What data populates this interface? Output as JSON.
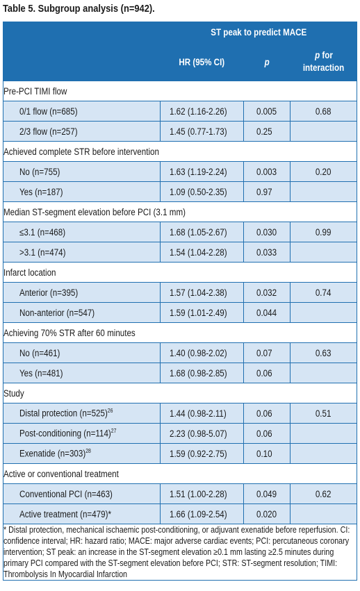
{
  "title": "Table 5. Subgroup analysis (n=942).",
  "header": {
    "group": "ST peak to predict MACE",
    "col1": "HR (95% CI)",
    "col2": "p",
    "col3_a": "p",
    "col3_b": " for",
    "col3_c": "interaction"
  },
  "sections": [
    {
      "title": "Pre-PCI TIMI flow",
      "rows": [
        {
          "label": "0/1 flow (n=685)",
          "hr": "1.62 (1.16-2.26)",
          "p": "0.005",
          "pint": "0.68"
        },
        {
          "label": "2/3 flow (n=257)",
          "hr": "1.45 (0.77-1.73)",
          "p": "0.25",
          "pint": ""
        }
      ]
    },
    {
      "title": "Achieved complete STR before intervention",
      "rows": [
        {
          "label": "No (n=755)",
          "hr": "1.63 (1.19-2.24)",
          "p": "0.003",
          "pint": "0.20"
        },
        {
          "label": "Yes (n=187)",
          "hr": "1.09 (0.50-2.35)",
          "p": "0.97",
          "pint": ""
        }
      ]
    },
    {
      "title": "Median ST-segment elevation before PCI (3.1 mm)",
      "rows": [
        {
          "label": "≤3.1 (n=468)",
          "hr": "1.68 (1.05-2.67)",
          "p": "0.030",
          "pint": "0.99"
        },
        {
          "label": ">3.1 (n=474)",
          "hr": "1.54 (1.04-2.28)",
          "p": "0.033",
          "pint": ""
        }
      ]
    },
    {
      "title": "Infarct location",
      "rows": [
        {
          "label": "Anterior (n=395)",
          "hr": "1.57 (1.04-2.38)",
          "p": "0.032",
          "pint": "0.74"
        },
        {
          "label": "Non-anterior (n=547)",
          "hr": "1.59 (1.01-2.49)",
          "p": "0.044",
          "pint": ""
        }
      ]
    },
    {
      "title": "Achieving 70% STR after 60 minutes",
      "rows": [
        {
          "label": "No (n=461)",
          "hr": "1.40 (0.98-2.02)",
          "p": "0.07",
          "pint": "0.63"
        },
        {
          "label": "Yes (n=481)",
          "hr": "1.68 (0.98-2.85)",
          "p": "0.06",
          "pint": ""
        }
      ]
    },
    {
      "title": "Study",
      "rows": [
        {
          "label": "Distal protection (n=525)",
          "sup": "26",
          "hr": "1.44 (0.98-2.11)",
          "p": "0.06",
          "pint": "0.51"
        },
        {
          "label": "Post-conditioning (n=114)",
          "sup": "27",
          "hr": "2.23 (0.98-5.07)",
          "p": "0.06",
          "pint": ""
        },
        {
          "label": "Exenatide (n=303)",
          "sup": "28",
          "hr": "1.59 (0.92-2.75)",
          "p": "0.10",
          "pint": ""
        }
      ]
    },
    {
      "title": "Active or conventional treatment",
      "rows": [
        {
          "label": "Conventional PCI (n=463)",
          "hr": "1.51 (1.00-2.28)",
          "p": "0.049",
          "pint": "0.62"
        },
        {
          "label": "Active treatment (n=479)*",
          "hr": "1.66 (1.09-2.54)",
          "p": "0.020",
          "pint": ""
        }
      ]
    }
  ],
  "footnote": "* Distal protection, mechanical ischaemic post-conditioning, or adjuvant exenatide before reperfusion. CI: confidence interval; HR: hazard ratio; MACE: major adverse cardiac events; PCI: percutaneous coronary intervention; ST peak: an increase in the ST-segment elevation ≥0.1 mm lasting ≥2.5 minutes during primary PCI compared with the ST-segment elevation before PCI; STR: ST-segment resolution; TIMI: Thrombolysis In Myocardial Infarction",
  "colors": {
    "header_bg": "#1f6fb0",
    "row_bg": "#d6e5f4",
    "border": "#1f6fb0"
  }
}
